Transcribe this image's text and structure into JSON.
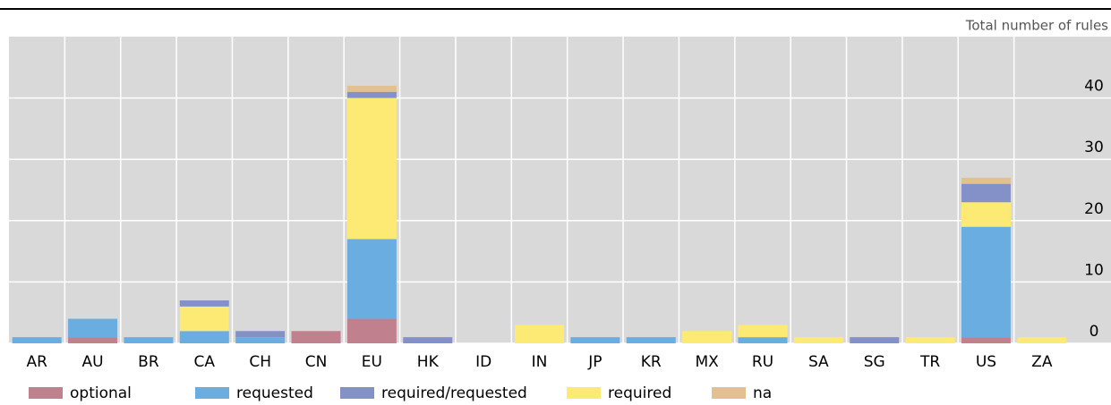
{
  "chart_data": {
    "type": "stacked_bar",
    "y_axis_title": "Total number of rules",
    "categories": [
      "AR",
      "AU",
      "BR",
      "CA",
      "CH",
      "CN",
      "EU",
      "HK",
      "ID",
      "IN",
      "JP",
      "KR",
      "MX",
      "RU",
      "SA",
      "SG",
      "TR",
      "US",
      "ZA"
    ],
    "series": [
      {
        "name": "optional",
        "color": "#c1808d",
        "values": [
          0,
          1,
          0,
          0,
          0,
          2,
          4,
          0,
          0,
          0,
          0,
          0,
          0,
          0,
          0,
          0,
          0,
          1,
          0
        ]
      },
      {
        "name": "requested",
        "color": "#6aade0",
        "values": [
          1,
          3,
          1,
          2,
          1,
          0,
          13,
          0,
          0,
          0,
          1,
          1,
          0,
          1,
          0,
          0,
          0,
          18,
          0
        ]
      },
      {
        "name": "required/requested",
        "color": "#8490c8",
        "values": [
          0,
          0,
          0,
          1,
          1,
          0,
          1,
          1,
          0,
          0,
          0,
          0,
          0,
          0,
          0,
          1,
          0,
          3,
          0
        ]
      },
      {
        "name": "required",
        "color": "#fdea74",
        "values": [
          0,
          0,
          0,
          4,
          0,
          0,
          23,
          0,
          0,
          3,
          0,
          0,
          2,
          2,
          1,
          0,
          1,
          4,
          1
        ]
      },
      {
        "name": "na",
        "color": "#e2c18f",
        "values": [
          0,
          0,
          0,
          0,
          0,
          0,
          1,
          0,
          0,
          0,
          0,
          0,
          0,
          0,
          0,
          0,
          0,
          1,
          0
        ]
      }
    ],
    "stack_order": [
      0,
      1,
      3,
      2,
      4
    ],
    "ylim": [
      0,
      50
    ],
    "yticks": [
      0,
      10,
      20,
      30,
      40
    ],
    "grid": true,
    "legend": "bottom"
  }
}
